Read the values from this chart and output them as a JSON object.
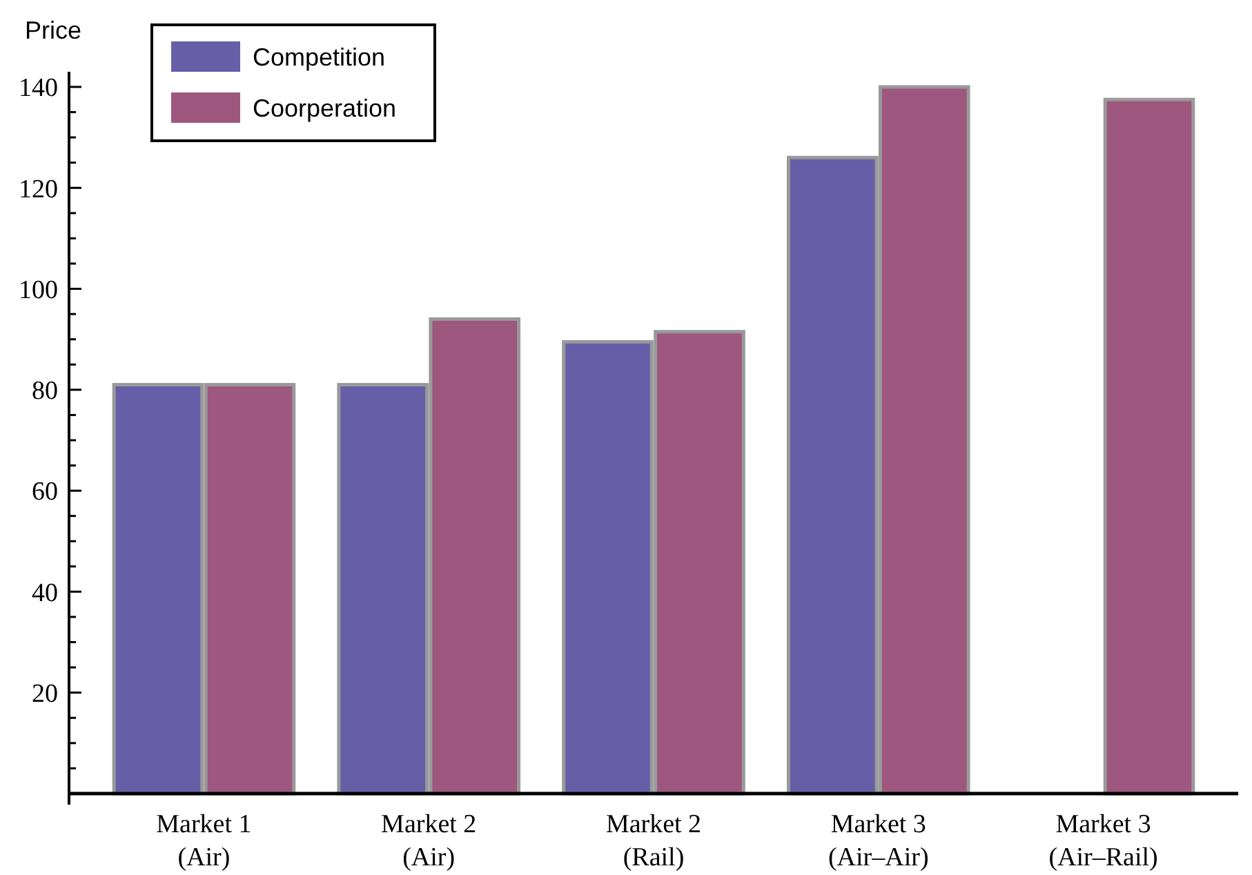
{
  "chart_data": {
    "type": "bar",
    "ylabel": "Price",
    "categories": [
      "Market 1\n(Air)",
      "Market 2\n(Air)",
      "Market 2\n(Rail)",
      "Market 3\n(Air–Air)",
      "Market 3\n(Air–Rail)"
    ],
    "series": [
      {
        "name": "Competition",
        "color": "#675ea8",
        "values": [
          81,
          81,
          89.5,
          126,
          null
        ]
      },
      {
        "name": "Coorperation",
        "color": "#9e577e",
        "values": [
          81,
          94,
          91.5,
          140,
          137.5
        ]
      }
    ],
    "ylim": [
      0,
      143
    ],
    "yticks": [
      {
        "value": 5,
        "label": null
      },
      {
        "value": 10,
        "label": null
      },
      {
        "value": 15,
        "label": null
      },
      20,
      {
        "value": 25,
        "label": null
      },
      {
        "value": 30,
        "label": null
      },
      {
        "value": 35,
        "label": null
      },
      40,
      {
        "value": 45,
        "label": null
      },
      {
        "value": 50,
        "label": null
      },
      {
        "value": 55,
        "label": null
      },
      60,
      {
        "value": 65,
        "label": null
      },
      {
        "value": 70,
        "label": null
      },
      {
        "value": 75,
        "label": null
      },
      80,
      {
        "value": 85,
        "label": null
      },
      {
        "value": 90,
        "label": null
      },
      {
        "value": 95,
        "label": null
      },
      100,
      {
        "value": 105,
        "label": null
      },
      {
        "value": 110,
        "label": null
      },
      {
        "value": 115,
        "label": null
      },
      120,
      {
        "value": 125,
        "label": null
      },
      {
        "value": 130,
        "label": null
      },
      {
        "value": 135,
        "label": null
      },
      140
    ],
    "grid": false,
    "legend": "top left"
  }
}
